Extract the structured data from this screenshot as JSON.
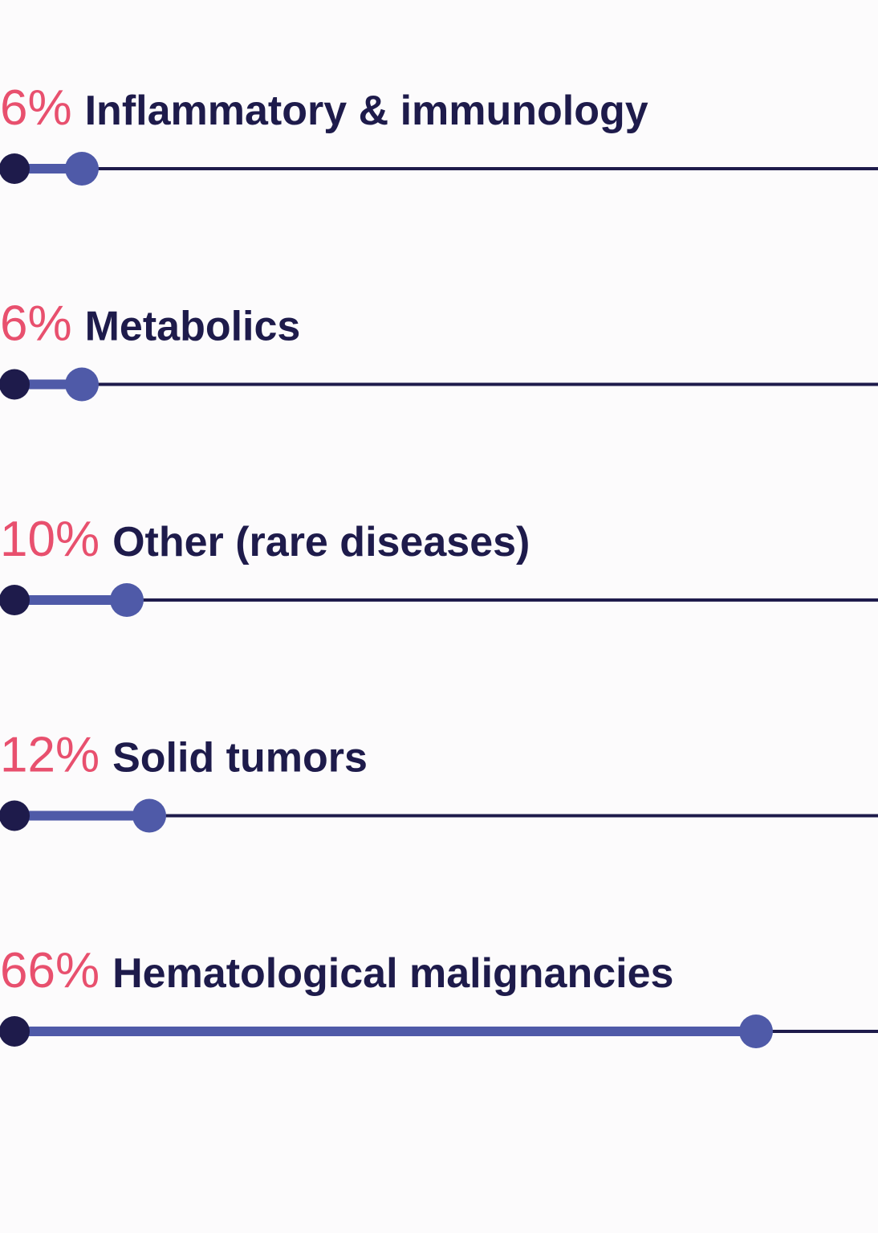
{
  "chart_data": {
    "type": "progress",
    "categories": [
      "Inflammatory & immunology",
      "Metabolics",
      "Other (rare diseases)",
      "Solid tumors",
      "Hematological malignancies"
    ],
    "values": [
      6,
      6,
      10,
      12,
      66
    ],
    "value_labels": [
      "6%",
      "6%",
      "10%",
      "12%",
      "66%"
    ],
    "color": "#4f5aa8",
    "track_color": "#1e1b4b",
    "label_color": "#e8506e"
  }
}
